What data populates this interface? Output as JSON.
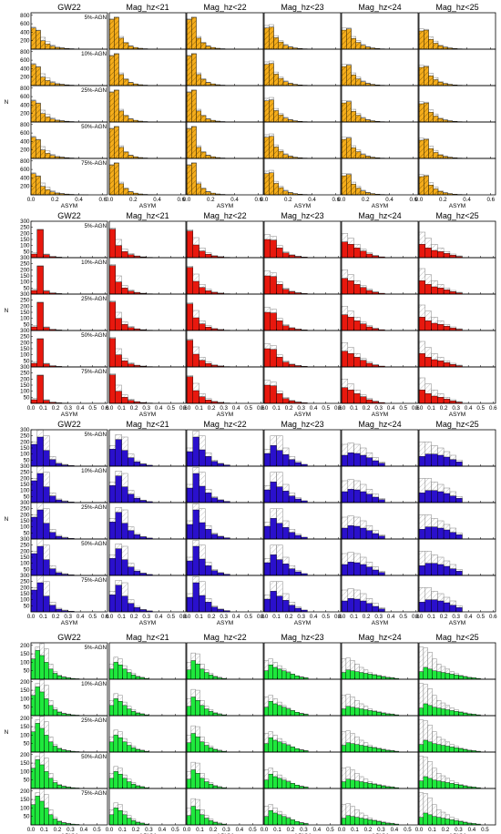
{
  "column_titles": [
    "GW22",
    "Mag_hz<21",
    "Mag_hz<22",
    "Mag_hz<23",
    "Mag_hz<24",
    "Mag_hz<25"
  ],
  "row_labels": [
    "5%-AGN",
    "10%-AGN",
    "25%-AGN",
    "50%-AGN",
    "75%-AGN"
  ],
  "xlabel": "ASYM",
  "ylabel": "N",
  "colors": {
    "orange": "#f5ad1b",
    "red": "#e8180e",
    "blue": "#2a10cc",
    "green": "#1ee83c",
    "outline": "#888888"
  },
  "chart_data": [
    {
      "type": "bar",
      "group": "orange",
      "x_ticks": [
        "0.0",
        "0.2",
        "0.4",
        "0.6"
      ],
      "xlim": [
        0,
        0.64
      ],
      "y_ticks": [
        "200",
        "400",
        "600",
        "800"
      ],
      "ylim": [
        0,
        860
      ],
      "bin_width": 0.04,
      "hatched": true,
      "series": {
        "agn": [
          [
            500,
            440,
            200,
            120,
            70,
            40,
            25,
            15,
            10,
            5,
            3,
            2
          ],
          [
            700,
            750,
            260,
            150,
            70,
            40,
            20,
            10,
            5,
            3
          ],
          [
            700,
            750,
            260,
            150,
            70,
            40,
            20,
            10,
            5,
            3
          ],
          [
            500,
            520,
            270,
            170,
            90,
            50,
            25,
            15,
            8,
            5
          ],
          [
            450,
            480,
            250,
            160,
            90,
            50,
            25,
            15,
            8,
            5
          ],
          [
            430,
            450,
            230,
            140,
            80,
            45,
            25,
            15,
            8,
            5
          ]
        ],
        "ref": [
          [
            520,
            450,
            280,
            180,
            100,
            60,
            35,
            20,
            10,
            5
          ],
          [
            720,
            760,
            300,
            160,
            80,
            40,
            20,
            10,
            5
          ],
          [
            720,
            760,
            300,
            160,
            80,
            40,
            20,
            10,
            5
          ],
          [
            560,
            580,
            320,
            200,
            110,
            60,
            30,
            15,
            8,
            5
          ],
          [
            500,
            500,
            300,
            200,
            110,
            60,
            30,
            15,
            8,
            5
          ],
          [
            480,
            470,
            290,
            190,
            100,
            55,
            30,
            15,
            8,
            5
          ]
        ]
      }
    },
    {
      "type": "bar",
      "group": "red",
      "x_ticks": [
        "0.0",
        "0.1",
        "0.2",
        "0.3",
        "0.4",
        "0.5",
        "0.6"
      ],
      "xlim": [
        0,
        0.62
      ],
      "y_ticks": [
        "50",
        "100",
        "150",
        "200",
        "250",
        "300"
      ],
      "ylim": [
        0,
        300
      ],
      "bin_width": 0.05,
      "hatched": false,
      "series": {
        "agn": [
          [
            30,
            230,
            25,
            8,
            4,
            2
          ],
          [
            235,
            100,
            50,
            25,
            12,
            6,
            3
          ],
          [
            220,
            105,
            55,
            28,
            14,
            7,
            3
          ],
          [
            150,
            145,
            80,
            40,
            20,
            10,
            5
          ],
          [
            130,
            110,
            80,
            55,
            30,
            15,
            7
          ],
          [
            110,
            80,
            60,
            50,
            35,
            20,
            10
          ]
        ],
        "ref": [
          [
            40,
            235,
            30,
            10,
            5
          ],
          [
            245,
            150,
            70,
            35,
            15,
            8
          ],
          [
            230,
            165,
            80,
            40,
            18,
            9
          ],
          [
            190,
            175,
            100,
            50,
            25,
            12
          ],
          [
            200,
            160,
            110,
            70,
            40,
            20
          ],
          [
            210,
            160,
            110,
            80,
            50,
            30,
            15
          ]
        ]
      }
    },
    {
      "type": "bar",
      "group": "blue",
      "x_ticks": [
        "0.0",
        "0.1",
        "0.2",
        "0.3",
        "0.4",
        "0.5",
        "0.6"
      ],
      "xlim": [
        0,
        0.62
      ],
      "y_ticks": [
        "50",
        "100",
        "150",
        "200",
        "250",
        "300"
      ],
      "ylim": [
        0,
        300
      ],
      "bin_width": 0.05,
      "hatched": false,
      "series": {
        "agn": [
          [
            180,
            240,
            130,
            55,
            22,
            10,
            5
          ],
          [
            140,
            220,
            130,
            70,
            35,
            18,
            8
          ],
          [
            120,
            240,
            135,
            80,
            40,
            20,
            10
          ],
          [
            105,
            170,
            130,
            95,
            55,
            30,
            15
          ],
          [
            90,
            110,
            105,
            90,
            70,
            45,
            25
          ],
          [
            80,
            100,
            100,
            90,
            75,
            55,
            35
          ]
        ],
        "ref": [
          [
            200,
            300,
            250,
            80,
            30,
            15
          ],
          [
            170,
            260,
            240,
            100,
            45,
            20
          ],
          [
            150,
            290,
            250,
            110,
            50,
            25
          ],
          [
            140,
            250,
            250,
            150,
            80,
            40
          ],
          [
            180,
            190,
            180,
            150,
            110,
            70,
            35
          ],
          [
            200,
            200,
            170,
            150,
            120,
            90,
            50
          ]
        ]
      }
    },
    {
      "type": "bar",
      "group": "green",
      "x_ticks": [
        "0.0",
        "0.1",
        "0.2",
        "0.3",
        "0.4",
        "0.5"
      ],
      "xlim": [
        0,
        0.58
      ],
      "y_ticks": [
        "50",
        "100",
        "150",
        "200"
      ],
      "ylim": [
        0,
        215
      ],
      "bin_width": 0.0333,
      "hatched": false,
      "series": {
        "agn": [
          [
            120,
            170,
            140,
            100,
            60,
            35,
            20,
            12,
            8,
            5,
            3
          ],
          [
            60,
            100,
            85,
            60,
            40,
            25,
            15,
            10,
            5
          ],
          [
            55,
            110,
            90,
            60,
            40,
            25,
            15,
            8,
            5
          ],
          [
            50,
            85,
            70,
            60,
            50,
            40,
            30,
            20,
            12,
            8
          ],
          [
            40,
            55,
            50,
            45,
            40,
            35,
            30,
            25,
            20,
            15,
            10,
            8,
            5
          ],
          [
            45,
            70,
            60,
            50,
            45,
            40,
            35,
            30,
            25,
            20,
            15,
            10,
            8,
            5
          ]
        ],
        "ref": [
          [
            150,
            190,
            210,
            180,
            90,
            45,
            25,
            15,
            10
          ],
          [
            90,
            130,
            120,
            80,
            55,
            35,
            20,
            12
          ],
          [
            100,
            155,
            150,
            90,
            55,
            35,
            20,
            12
          ],
          [
            110,
            120,
            100,
            80,
            60,
            45,
            30,
            20,
            15,
            10
          ],
          [
            120,
            125,
            110,
            90,
            70,
            55,
            40,
            30,
            25,
            20,
            15,
            10
          ],
          [
            190,
            185,
            160,
            120,
            90,
            75,
            60,
            45,
            35,
            25,
            18,
            12,
            8
          ]
        ]
      }
    }
  ]
}
